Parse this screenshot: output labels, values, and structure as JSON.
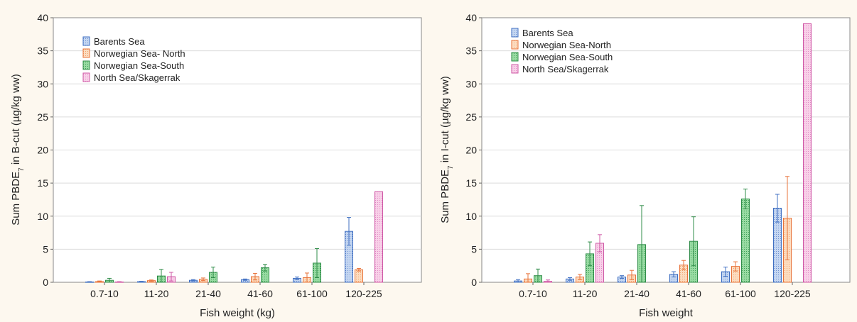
{
  "chart_data": [
    {
      "type": "bar",
      "title": "",
      "xlabel": "Fish weight (kg)",
      "ylabel": {
        "pre": "Sum PBDE",
        "sub": "7",
        "post": " in B-cut (µg/kg ww)"
      },
      "ylim": [
        0,
        40
      ],
      "yticks": [
        0,
        5,
        10,
        15,
        20,
        25,
        30,
        35,
        40
      ],
      "grid": true,
      "legend_position": "top-left",
      "categories": [
        "0.7-10",
        "11-20",
        "21-40",
        "41-60",
        "61-100",
        "120-225"
      ],
      "series": [
        {
          "name": "Barents Sea",
          "values": [
            0.05,
            0.1,
            0.3,
            0.4,
            0.6,
            7.7
          ],
          "errors": [
            0.05,
            0.05,
            0.1,
            0.1,
            0.2,
            2.1
          ]
        },
        {
          "name": "Norwegian Sea- North",
          "values": [
            0.1,
            0.25,
            0.45,
            0.85,
            0.7,
            1.9
          ],
          "errors": [
            0.1,
            0.1,
            0.2,
            0.5,
            0.7,
            0.2
          ]
        },
        {
          "name": "Norwegian Sea-South",
          "values": [
            0.3,
            0.95,
            1.5,
            2.2,
            2.9,
            null
          ],
          "errors": [
            0.3,
            1.0,
            0.8,
            0.5,
            2.2,
            null
          ]
        },
        {
          "name": "North Sea/Skagerrak",
          "values": [
            0.05,
            0.85,
            null,
            null,
            null,
            13.7
          ],
          "errors": [
            0.05,
            0.65,
            null,
            null,
            null,
            0
          ]
        }
      ]
    },
    {
      "type": "bar",
      "title": "",
      "xlabel": "Fish weight",
      "ylabel": {
        "pre": "Sum PBDE",
        "sub": "7",
        "post": " in I-cut (µg/kg ww)"
      },
      "ylim": [
        0,
        40
      ],
      "yticks": [
        0,
        5,
        10,
        15,
        20,
        25,
        30,
        35,
        40
      ],
      "grid": true,
      "legend_position": "top-left",
      "categories": [
        "0.7-10",
        "11-20",
        "21-40",
        "41-60",
        "61-100",
        "120-225"
      ],
      "series": [
        {
          "name": "Barents Sea",
          "values": [
            0.2,
            0.5,
            0.8,
            1.2,
            1.6,
            11.2
          ],
          "errors": [
            0.2,
            0.2,
            0.2,
            0.4,
            0.7,
            2.1
          ]
        },
        {
          "name": "Norwegian Sea-North",
          "values": [
            0.5,
            0.8,
            1.1,
            2.6,
            2.4,
            9.7
          ],
          "errors": [
            0.8,
            0.4,
            0.7,
            0.7,
            0.7,
            6.3
          ]
        },
        {
          "name": "Norwegian Sea-South",
          "values": [
            1.0,
            4.3,
            5.7,
            6.2,
            12.6,
            null
          ],
          "errors": [
            1.0,
            1.8,
            5.9,
            3.7,
            1.5,
            null
          ]
        },
        {
          "name": "North Sea/Skagerrak",
          "values": [
            0.15,
            5.9,
            null,
            null,
            null,
            39.1
          ],
          "errors": [
            0.2,
            1.3,
            null,
            null,
            null,
            0
          ]
        }
      ]
    }
  ],
  "series_colors": [
    {
      "fill": "#b9cfee",
      "stroke": "#3f6fc2"
    },
    {
      "fill": "#fbd3b0",
      "stroke": "#e8733a"
    },
    {
      "fill": "#8fd59a",
      "stroke": "#2f8c48"
    },
    {
      "fill": "#f6c4e2",
      "stroke": "#cf58a6"
    }
  ],
  "error_bar_colors": [
    "#3f6fc2",
    "#e8733a",
    "#2f8c48",
    "#cf58a6"
  ]
}
